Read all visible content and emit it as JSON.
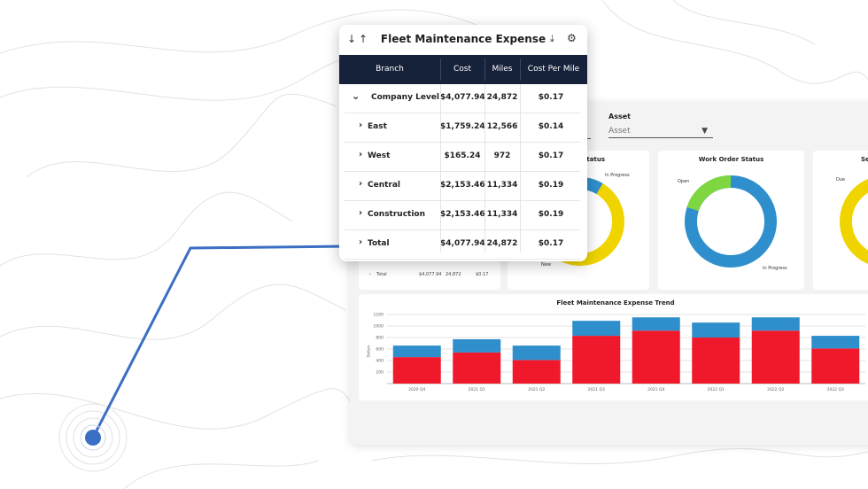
{
  "popup": {
    "title": "Fleet Maintenance Expense",
    "sort_icons": [
      "arrow-down-icon",
      "arrow-up-icon"
    ],
    "actions": [
      "download-icon",
      "gear-icon"
    ],
    "columns": [
      "Branch",
      "Cost",
      "Miles",
      "Cost Per Mile"
    ],
    "rows": [
      {
        "branch": "Company Level",
        "cost": "$4,077.94",
        "miles": "24,872",
        "cpm": "$0.17",
        "expanded": true
      },
      {
        "branch": "East",
        "cost": "$1,759.24",
        "miles": "12,566",
        "cpm": "$0.14"
      },
      {
        "branch": "West",
        "cost": "$165.24",
        "miles": "972",
        "cpm": "$0.17"
      },
      {
        "branch": "Central",
        "cost": "$2,153.46",
        "miles": "11,334",
        "cpm": "$0.19"
      },
      {
        "branch": "Construction",
        "cost": "$2,153.46",
        "miles": "11,334",
        "cpm": "$0.19"
      },
      {
        "branch": "Total",
        "cost": "$4,077.94",
        "miles": "24,872",
        "cpm": "$0.17"
      }
    ]
  },
  "dashboard": {
    "filter": {
      "label": "Asset",
      "placeholder": "Asset"
    },
    "bg_table_row": {
      "branch": "Total",
      "cost": "$4,077.94",
      "miles": "24,872",
      "cpm": "$0.17"
    },
    "donuts": [
      {
        "title": "Status",
        "labels": [
          "In Progress",
          "New"
        ],
        "colors": [
          "#2f8fcc",
          "#f0d400"
        ]
      },
      {
        "title": "Work Order Status",
        "labels": [
          "Open",
          "In Progress"
        ],
        "colors": [
          "#7ed640",
          "#2f8fcc"
        ]
      },
      {
        "title": "Se",
        "labels": [
          "Due"
        ],
        "colors": [
          "#f0d400"
        ]
      }
    ]
  },
  "chart_data": {
    "type": "bar",
    "stacked": true,
    "title": "Fleet Maintenance Expense Trend",
    "ylabel": "Dollars",
    "ylim": [
      0,
      1200
    ],
    "yticks": [
      200,
      400,
      600,
      800,
      1000,
      1200
    ],
    "categories": [
      "2020 Q4",
      "2021 Q1",
      "2021 Q2",
      "2021 Q3",
      "2021 Q4",
      "2022 Q1",
      "2022 Q2",
      "2022 Q3"
    ],
    "series": [
      {
        "values": [
          460,
          540,
          410,
          830,
          920,
          800,
          920,
          610
        ],
        "color": "#f0192c"
      },
      {
        "values": [
          200,
          230,
          250,
          260,
          230,
          260,
          230,
          220
        ],
        "color": "#2f8fcc"
      }
    ],
    "grid": true
  },
  "accent": "#3b6fc4"
}
